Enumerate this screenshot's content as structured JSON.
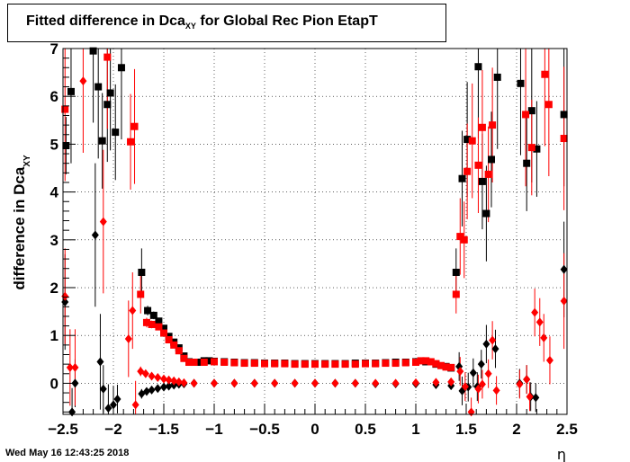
{
  "title": {
    "main": "Fitted difference in Dca",
    "sub": "XY",
    "suffix": " for Global Rec Pion EtapT"
  },
  "timestamp": "Wed May 16 12:43:25 2018",
  "chart_data": {
    "type": "scatter",
    "title": "Fitted difference in Dca_XY for Global Rec Pion EtapT",
    "xlabel": "η",
    "ylabel": "difference in Dca",
    "ylabel_sub": "XY",
    "xlim": [
      -2.5,
      2.5
    ],
    "ylim": [
      -0.65,
      7.0
    ],
    "xticks": [
      -2.5,
      -2,
      -1.5,
      -1,
      -0.5,
      0,
      0.5,
      1,
      1.5,
      2,
      2.5
    ],
    "xtick_labels": [
      "−2.5",
      "−2",
      "−1.5",
      "−1",
      "−0.5",
      "0",
      "0.5",
      "1",
      "1.5",
      "2",
      "2.5"
    ],
    "yticks": [
      0,
      1,
      2,
      3,
      4,
      5,
      6,
      7
    ],
    "ytick_labels": [
      "0",
      "1",
      "2",
      "3",
      "4",
      "5",
      "6",
      "7"
    ],
    "grid": true,
    "colors": {
      "black": "#000000",
      "red": "#ff0000"
    },
    "series": [
      {
        "marker": "square",
        "color": "#000000",
        "points": [
          [
            -2.47,
            4.97,
            0.6
          ],
          [
            -2.42,
            6.1,
            1.5
          ],
          [
            -2.2,
            6.95,
            1.5
          ],
          [
            -2.15,
            6.2,
            1.5
          ],
          [
            -2.11,
            5.07,
            1.0
          ],
          [
            -2.06,
            5.83,
            1.2
          ],
          [
            -2.03,
            6.07,
            1.2
          ],
          [
            -1.98,
            5.25,
            1.0
          ],
          [
            -1.92,
            6.6,
            1.5
          ],
          [
            -1.72,
            2.32,
            0.5
          ],
          [
            -1.66,
            1.52,
            0.1
          ],
          [
            -1.6,
            1.42,
            0.08
          ],
          [
            -1.55,
            1.3,
            0.07
          ],
          [
            -1.5,
            1.15,
            0.05
          ],
          [
            -1.45,
            0.98,
            0.05
          ],
          [
            -1.4,
            0.86,
            0.04
          ],
          [
            -1.35,
            0.74,
            0.03
          ],
          [
            -1.3,
            0.57,
            0.03
          ],
          [
            -1.25,
            0.45,
            0.02
          ],
          [
            -1.2,
            0.44,
            0.02
          ],
          [
            -1.15,
            0.44,
            0.02
          ],
          [
            -1.1,
            0.47,
            0.02
          ],
          [
            -1.05,
            0.47,
            0.02
          ],
          [
            -1.0,
            0.46,
            0.02
          ],
          [
            -0.9,
            0.45,
            0.02
          ],
          [
            -0.8,
            0.44,
            0.02
          ],
          [
            -0.7,
            0.43,
            0.02
          ],
          [
            -0.6,
            0.43,
            0.02
          ],
          [
            -0.5,
            0.42,
            0.02
          ],
          [
            -0.4,
            0.42,
            0.02
          ],
          [
            -0.3,
            0.42,
            0.02
          ],
          [
            -0.2,
            0.41,
            0.02
          ],
          [
            -0.1,
            0.41,
            0.02
          ],
          [
            0.0,
            0.41,
            0.02
          ],
          [
            0.1,
            0.41,
            0.02
          ],
          [
            0.2,
            0.41,
            0.02
          ],
          [
            0.3,
            0.41,
            0.02
          ],
          [
            0.4,
            0.42,
            0.02
          ],
          [
            0.5,
            0.42,
            0.02
          ],
          [
            0.6,
            0.42,
            0.02
          ],
          [
            0.7,
            0.43,
            0.02
          ],
          [
            0.8,
            0.44,
            0.02
          ],
          [
            0.9,
            0.44,
            0.02
          ],
          [
            1.0,
            0.45,
            0.02
          ],
          [
            1.1,
            0.45,
            0.02
          ],
          [
            1.2,
            0.4,
            0.02
          ],
          [
            1.3,
            0.35,
            0.02
          ],
          [
            1.35,
            0.32,
            0.02
          ],
          [
            1.4,
            2.32,
            0.5
          ],
          [
            1.46,
            4.28,
            1.0
          ],
          [
            1.51,
            5.1,
            1.2
          ],
          [
            1.62,
            6.62,
            1.5
          ],
          [
            1.66,
            4.22,
            1.0
          ],
          [
            1.7,
            3.55,
            1.0
          ],
          [
            1.75,
            4.68,
            1.0
          ],
          [
            1.81,
            6.4,
            1.5
          ],
          [
            2.04,
            6.27,
            1.5
          ],
          [
            2.1,
            4.6,
            1.0
          ],
          [
            2.15,
            5.7,
            1.5
          ],
          [
            2.2,
            4.9,
            1.0
          ],
          [
            2.47,
            5.62,
            1.5
          ]
        ]
      },
      {
        "marker": "square",
        "color": "#ff0000",
        "points": [
          [
            -2.48,
            5.73,
            1.5
          ],
          [
            -2.06,
            6.82,
            1.5
          ],
          [
            -1.83,
            5.05,
            1.0
          ],
          [
            -1.79,
            5.37,
            1.2
          ],
          [
            -1.73,
            1.86,
            0.4
          ],
          [
            -1.67,
            1.27,
            0.1
          ],
          [
            -1.62,
            1.23,
            0.08
          ],
          [
            -1.55,
            1.18,
            0.07
          ],
          [
            -1.5,
            1.05,
            0.05
          ],
          [
            -1.45,
            0.91,
            0.05
          ],
          [
            -1.4,
            0.8,
            0.04
          ],
          [
            -1.35,
            0.68,
            0.03
          ],
          [
            -1.3,
            0.52,
            0.03
          ],
          [
            -1.25,
            0.44,
            0.02
          ],
          [
            -1.2,
            0.44,
            0.02
          ],
          [
            -1.1,
            0.44,
            0.02
          ],
          [
            -1.0,
            0.45,
            0.02
          ],
          [
            -0.9,
            0.44,
            0.02
          ],
          [
            -0.8,
            0.43,
            0.02
          ],
          [
            -0.7,
            0.42,
            0.02
          ],
          [
            -0.6,
            0.42,
            0.02
          ],
          [
            -0.5,
            0.41,
            0.02
          ],
          [
            -0.4,
            0.41,
            0.02
          ],
          [
            -0.3,
            0.41,
            0.02
          ],
          [
            -0.2,
            0.4,
            0.02
          ],
          [
            -0.1,
            0.4,
            0.02
          ],
          [
            0.0,
            0.4,
            0.02
          ],
          [
            0.1,
            0.4,
            0.02
          ],
          [
            0.2,
            0.4,
            0.02
          ],
          [
            0.3,
            0.4,
            0.02
          ],
          [
            0.4,
            0.4,
            0.02
          ],
          [
            0.5,
            0.41,
            0.02
          ],
          [
            0.6,
            0.41,
            0.02
          ],
          [
            0.7,
            0.42,
            0.02
          ],
          [
            0.8,
            0.42,
            0.02
          ],
          [
            0.9,
            0.43,
            0.02
          ],
          [
            1.0,
            0.44,
            0.02
          ],
          [
            1.05,
            0.47,
            0.02
          ],
          [
            1.1,
            0.47,
            0.02
          ],
          [
            1.15,
            0.45,
            0.02
          ],
          [
            1.2,
            0.41,
            0.02
          ],
          [
            1.25,
            0.37,
            0.02
          ],
          [
            1.3,
            0.34,
            0.02
          ],
          [
            1.35,
            0.33,
            0.02
          ],
          [
            1.4,
            1.86,
            0.4
          ],
          [
            1.44,
            3.07,
            0.8
          ],
          [
            1.48,
            3.0,
            0.8
          ],
          [
            1.51,
            4.43,
            1.0
          ],
          [
            1.56,
            5.07,
            1.2
          ],
          [
            1.62,
            4.56,
            1.0
          ],
          [
            1.66,
            5.35,
            1.2
          ],
          [
            1.72,
            4.37,
            1.0
          ],
          [
            1.76,
            5.4,
            1.2
          ],
          [
            2.09,
            5.62,
            1.5
          ],
          [
            2.15,
            4.93,
            1.0
          ],
          [
            2.28,
            6.46,
            1.5
          ],
          [
            2.32,
            5.83,
            1.5
          ],
          [
            2.47,
            5.12,
            1.5
          ]
        ]
      },
      {
        "marker": "diamond",
        "color": "#000000",
        "points": [
          [
            -2.48,
            1.7,
            1.0
          ],
          [
            -2.41,
            -0.6,
            0.5
          ],
          [
            -2.38,
            0.0,
            0.5
          ],
          [
            -2.18,
            3.1,
            1.5
          ],
          [
            -2.13,
            0.45,
            1.0
          ],
          [
            -2.1,
            -0.12,
            0.5
          ],
          [
            -2.05,
            -0.52,
            0.5
          ],
          [
            -2.0,
            -0.45,
            0.4
          ],
          [
            -1.96,
            -0.33,
            0.3
          ],
          [
            -1.72,
            -0.22,
            0.1
          ],
          [
            -1.67,
            -0.17,
            0.05
          ],
          [
            -1.62,
            -0.14,
            0.04
          ],
          [
            -1.56,
            -0.11,
            0.03
          ],
          [
            -1.5,
            -0.08,
            0.03
          ],
          [
            -1.45,
            -0.06,
            0.02
          ],
          [
            -1.4,
            -0.04,
            0.02
          ],
          [
            -1.35,
            -0.02,
            0.02
          ],
          [
            -1.3,
            -0.01,
            0.02
          ],
          [
            -1.2,
            0.0,
            0.02
          ],
          [
            -1.0,
            0.0,
            0.02
          ],
          [
            -0.8,
            0.0,
            0.02
          ],
          [
            -0.6,
            0.0,
            0.02
          ],
          [
            -0.4,
            0.0,
            0.02
          ],
          [
            -0.2,
            0.0,
            0.02
          ],
          [
            0.0,
            0.0,
            0.02
          ],
          [
            0.2,
            0.0,
            0.02
          ],
          [
            0.4,
            0.0,
            0.02
          ],
          [
            0.6,
            -0.01,
            0.02
          ],
          [
            0.8,
            -0.01,
            0.02
          ],
          [
            1.0,
            -0.01,
            0.02
          ],
          [
            1.2,
            -0.03,
            0.02
          ],
          [
            1.35,
            -0.05,
            0.02
          ],
          [
            1.43,
            0.35,
            0.3
          ],
          [
            1.46,
            -0.16,
            0.3
          ],
          [
            1.52,
            -0.08,
            0.3
          ],
          [
            1.57,
            0.22,
            0.3
          ],
          [
            1.61,
            -0.07,
            0.3
          ],
          [
            1.65,
            0.4,
            0.3
          ],
          [
            1.7,
            0.82,
            0.4
          ],
          [
            1.79,
            0.72,
            0.4
          ],
          [
            2.03,
            0.0,
            0.3
          ],
          [
            2.1,
            0.08,
            0.3
          ],
          [
            2.14,
            -0.28,
            0.3
          ],
          [
            2.19,
            -0.3,
            0.3
          ],
          [
            2.47,
            2.38,
            1.0
          ]
        ]
      },
      {
        "marker": "diamond",
        "color": "#ff0000",
        "points": [
          [
            -2.48,
            1.82,
            1.0
          ],
          [
            -2.43,
            0.33,
            0.8
          ],
          [
            -2.38,
            0.33,
            0.8
          ],
          [
            -2.3,
            6.32,
            1.5
          ],
          [
            -2.1,
            3.38,
            1.5
          ],
          [
            -1.85,
            0.93,
            0.8
          ],
          [
            -1.81,
            1.52,
            0.8
          ],
          [
            -1.78,
            -0.45,
            0.5
          ],
          [
            -1.73,
            0.25,
            0.1
          ],
          [
            -1.68,
            0.2,
            0.05
          ],
          [
            -1.62,
            0.15,
            0.04
          ],
          [
            -1.56,
            0.12,
            0.03
          ],
          [
            -1.5,
            0.09,
            0.03
          ],
          [
            -1.45,
            0.07,
            0.02
          ],
          [
            -1.4,
            0.05,
            0.02
          ],
          [
            -1.35,
            0.03,
            0.02
          ],
          [
            -1.3,
            0.01,
            0.02
          ],
          [
            -1.2,
            0.0,
            0.02
          ],
          [
            -1.0,
            0.0,
            0.02
          ],
          [
            -0.8,
            0.0,
            0.02
          ],
          [
            -0.6,
            0.0,
            0.02
          ],
          [
            -0.4,
            0.0,
            0.02
          ],
          [
            -0.2,
            0.0,
            0.02
          ],
          [
            0.0,
            0.0,
            0.02
          ],
          [
            0.2,
            0.0,
            0.02
          ],
          [
            0.4,
            0.0,
            0.02
          ],
          [
            0.6,
            0.0,
            0.02
          ],
          [
            0.8,
            0.0,
            0.02
          ],
          [
            1.0,
            0.01,
            0.02
          ],
          [
            1.2,
            0.02,
            0.02
          ],
          [
            1.35,
            0.03,
            0.02
          ],
          [
            1.44,
            0.25,
            0.3
          ],
          [
            1.49,
            -0.07,
            0.3
          ],
          [
            1.55,
            -0.6,
            0.3
          ],
          [
            1.62,
            -0.12,
            0.3
          ],
          [
            1.66,
            -0.02,
            0.3
          ],
          [
            1.72,
            0.2,
            0.3
          ],
          [
            1.76,
            0.9,
            0.4
          ],
          [
            1.8,
            -0.15,
            0.3
          ],
          [
            2.03,
            -0.02,
            0.3
          ],
          [
            2.1,
            0.08,
            0.3
          ],
          [
            2.13,
            -0.28,
            0.3
          ],
          [
            2.18,
            1.48,
            0.5
          ],
          [
            2.23,
            1.28,
            0.5
          ],
          [
            2.27,
            0.95,
            0.5
          ],
          [
            2.33,
            0.48,
            0.5
          ],
          [
            2.47,
            1.72,
            1.0
          ]
        ]
      }
    ]
  }
}
